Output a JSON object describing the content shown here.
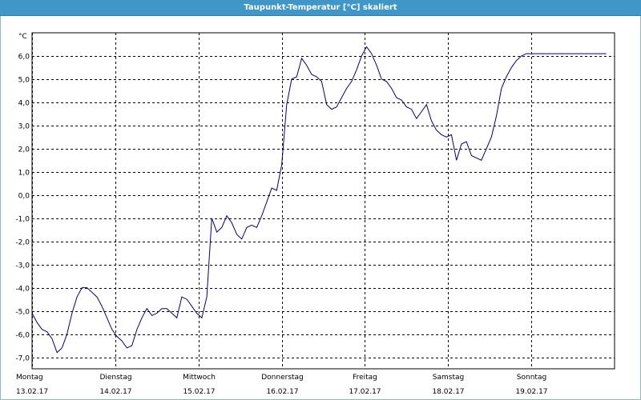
{
  "window": {
    "title": "Taupunkt-Temperatur [°C] skaliert"
  },
  "colors": {
    "titlebar": "#3f96c7",
    "line": "#00008b",
    "grid": "#000000"
  },
  "chart_data": {
    "type": "line",
    "title": "Taupunkt-Temperatur [°C] skaliert",
    "ylabel": "°C",
    "ylim": [
      -7.5,
      7.0
    ],
    "xlim": [
      0,
      7.0
    ],
    "grid": true,
    "y_ticks": [
      {
        "value": 6.0,
        "label": "6,0"
      },
      {
        "value": 5.0,
        "label": "5,0"
      },
      {
        "value": 4.0,
        "label": "4,0"
      },
      {
        "value": 3.0,
        "label": "3,0"
      },
      {
        "value": 2.0,
        "label": "2,0"
      },
      {
        "value": 1.0,
        "label": "1,0"
      },
      {
        "value": 0.0,
        "label": "0,0"
      },
      {
        "value": -1.0,
        "label": "-1,0"
      },
      {
        "value": -2.0,
        "label": "-2,0"
      },
      {
        "value": -3.0,
        "label": "-3,0"
      },
      {
        "value": -4.0,
        "label": "-4,0"
      },
      {
        "value": -5.0,
        "label": "-5,0"
      },
      {
        "value": -6.0,
        "label": "-6,0"
      },
      {
        "value": -7.0,
        "label": "-7,0"
      }
    ],
    "x_ticks": [
      {
        "value": 0,
        "day": "Montag",
        "date": "13.02.17"
      },
      {
        "value": 1,
        "day": "Dienstag",
        "date": "14.02.17"
      },
      {
        "value": 2,
        "day": "Mittwoch",
        "date": "15.02.17"
      },
      {
        "value": 3,
        "day": "Donnerstag",
        "date": "16.02.17"
      },
      {
        "value": 4,
        "day": "Freitag",
        "date": "17.02.17"
      },
      {
        "value": 5,
        "day": "Samstag",
        "date": "18.02.17"
      },
      {
        "value": 6,
        "day": "Sonntag",
        "date": "19.02.17"
      }
    ],
    "series": [
      {
        "x": [
          0.0,
          0.06,
          0.12,
          0.18,
          0.24,
          0.3,
          0.36,
          0.42,
          0.48,
          0.54,
          0.6,
          0.66,
          0.72,
          0.78,
          0.84,
          0.9,
          0.96,
          1.02,
          1.08,
          1.14,
          1.2,
          1.26,
          1.32,
          1.38,
          1.44,
          1.5,
          1.56,
          1.62,
          1.68,
          1.74,
          1.8,
          1.86,
          1.92,
          1.98,
          2.04,
          2.1,
          2.16,
          2.22,
          2.28,
          2.34,
          2.4,
          2.46,
          2.52,
          2.58,
          2.64,
          2.7,
          2.76,
          2.82,
          2.88,
          2.94,
          3.0,
          3.06,
          3.12,
          3.18,
          3.24,
          3.3,
          3.36,
          3.42,
          3.48,
          3.54,
          3.6,
          3.66,
          3.72,
          3.78,
          3.84,
          3.9,
          3.96,
          4.02,
          4.08,
          4.14,
          4.2,
          4.26,
          4.32,
          4.38,
          4.44,
          4.5,
          4.56,
          4.62,
          4.68,
          4.74,
          4.8,
          4.86,
          4.92,
          4.98,
          5.04,
          5.1,
          5.16,
          5.22,
          5.28,
          5.34,
          5.4,
          5.46,
          5.52,
          5.58,
          5.64,
          5.7,
          5.76,
          5.82,
          5.88,
          5.94,
          6.0,
          6.06,
          6.12,
          6.18,
          6.24,
          6.3,
          6.36,
          6.42,
          6.48,
          6.54,
          6.6,
          6.66,
          6.72,
          6.78,
          6.84,
          6.9
        ],
        "y": [
          -5.1,
          -5.5,
          -5.8,
          -5.9,
          -6.2,
          -6.8,
          -6.6,
          -6.0,
          -5.1,
          -4.4,
          -4.0,
          -4.0,
          -4.2,
          -4.4,
          -4.8,
          -5.3,
          -5.8,
          -6.1,
          -6.3,
          -6.6,
          -6.5,
          -5.8,
          -5.3,
          -4.9,
          -5.2,
          -5.1,
          -4.9,
          -4.9,
          -5.1,
          -5.3,
          -4.4,
          -4.5,
          -4.8,
          -5.1,
          -5.3,
          -4.4,
          -1.0,
          -1.6,
          -1.4,
          -0.9,
          -1.2,
          -1.7,
          -1.9,
          -1.4,
          -1.3,
          -1.4,
          -0.9,
          -0.3,
          0.3,
          0.2,
          1.3,
          3.9,
          5.0,
          5.1,
          5.9,
          5.6,
          5.2,
          5.1,
          4.9,
          3.9,
          3.7,
          3.8,
          4.2,
          4.6,
          4.9,
          5.4,
          6.0,
          6.4,
          6.1,
          5.6,
          5.0,
          4.9,
          4.6,
          4.2,
          4.1,
          3.8,
          3.7,
          3.3,
          3.6,
          3.9,
          3.2,
          2.8,
          2.6,
          2.5,
          2.6,
          1.5,
          2.2,
          2.3,
          1.7,
          1.6,
          1.5,
          2.0,
          2.5,
          3.4,
          4.6,
          5.1,
          5.5,
          5.8,
          6.0,
          6.1,
          6.1,
          6.1,
          6.1,
          6.1,
          6.1,
          6.1,
          6.1,
          6.1,
          6.1,
          6.1,
          6.1,
          6.1,
          6.1,
          6.1,
          6.1,
          6.1
        ]
      }
    ]
  }
}
